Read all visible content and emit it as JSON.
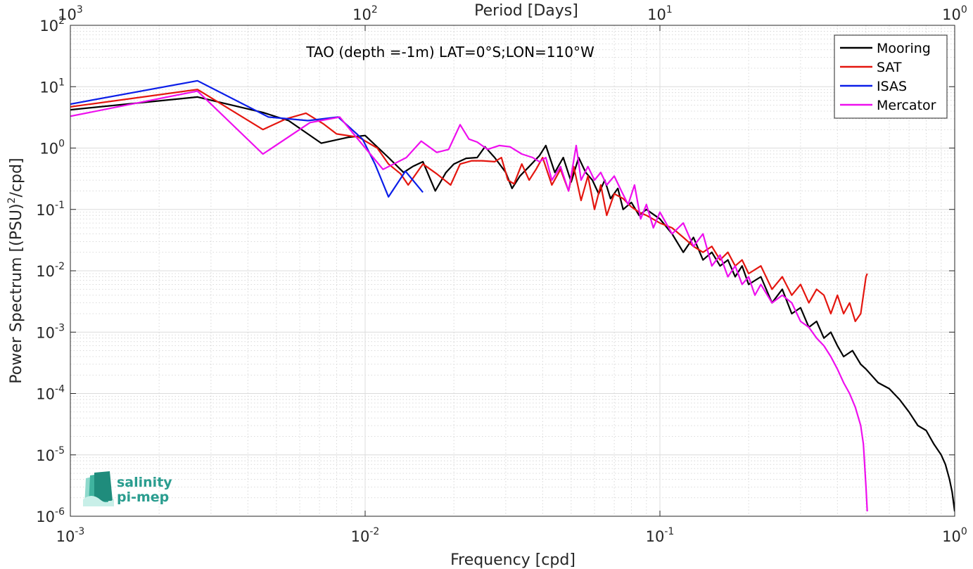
{
  "chart_data": {
    "type": "line",
    "title": "TAO (depth =-1m) LAT=0°S;LON=110°W",
    "xlabel": "Frequency [cpd]",
    "ylabel": "Power Spectrum [(PSU)²/cpd]",
    "ylabel_parts": {
      "a": "Power Spectrum [(PSU)",
      "sup": "2",
      "b": "/cpd]"
    },
    "top_xlabel": "Period [Days]",
    "xscale": "log",
    "yscale": "log",
    "xlim": [
      0.001,
      1
    ],
    "ylim": [
      1e-06,
      100
    ],
    "x_ticks": [
      {
        "value": 0.001,
        "base": "10",
        "exp": "-3"
      },
      {
        "value": 0.01,
        "base": "10",
        "exp": "-2"
      },
      {
        "value": 0.1,
        "base": "10",
        "exp": "-1"
      },
      {
        "value": 1,
        "base": "10",
        "exp": "0"
      }
    ],
    "top_ticks": [
      {
        "value": 0.001,
        "base": "10",
        "exp": "3"
      },
      {
        "value": 0.01,
        "base": "10",
        "exp": "2"
      },
      {
        "value": 0.1,
        "base": "10",
        "exp": "1"
      },
      {
        "value": 1,
        "base": "10",
        "exp": "0"
      }
    ],
    "y_ticks": [
      {
        "value": 100,
        "base": "10",
        "exp": "2"
      },
      {
        "value": 10,
        "base": "10",
        "exp": "1"
      },
      {
        "value": 1,
        "base": "10",
        "exp": "0"
      },
      {
        "value": 0.1,
        "base": "10",
        "exp": "-1"
      },
      {
        "value": 0.01,
        "base": "10",
        "exp": "-2"
      },
      {
        "value": 0.001,
        "base": "10",
        "exp": "-3"
      },
      {
        "value": 0.0001,
        "base": "10",
        "exp": "-4"
      },
      {
        "value": 1e-05,
        "base": "10",
        "exp": "-5"
      },
      {
        "value": 1e-06,
        "base": "10",
        "exp": "-6"
      }
    ],
    "grid": true,
    "minor_grid": true,
    "legend_position": "top-right",
    "series": [
      {
        "name": "Mooring",
        "color": "#000000",
        "points": [
          [
            0.001,
            4.2
          ],
          [
            0.0027,
            6.8
          ],
          [
            0.0045,
            3.8
          ],
          [
            0.0055,
            2.8
          ],
          [
            0.0071,
            1.2
          ],
          [
            0.0088,
            1.5
          ],
          [
            0.01,
            1.6
          ],
          [
            0.012,
            0.7
          ],
          [
            0.0135,
            0.4
          ],
          [
            0.0145,
            0.5
          ],
          [
            0.0157,
            0.6
          ],
          [
            0.0173,
            0.2
          ],
          [
            0.0188,
            0.4
          ],
          [
            0.02,
            0.55
          ],
          [
            0.022,
            0.68
          ],
          [
            0.024,
            0.7
          ],
          [
            0.0255,
            1.05
          ],
          [
            0.0275,
            0.7
          ],
          [
            0.03,
            0.4
          ],
          [
            0.0315,
            0.22
          ],
          [
            0.0335,
            0.35
          ],
          [
            0.036,
            0.5
          ],
          [
            0.039,
            0.75
          ],
          [
            0.041,
            1.1
          ],
          [
            0.044,
            0.4
          ],
          [
            0.047,
            0.7
          ],
          [
            0.05,
            0.28
          ],
          [
            0.053,
            0.7
          ],
          [
            0.056,
            0.4
          ],
          [
            0.059,
            0.3
          ],
          [
            0.062,
            0.18
          ],
          [
            0.065,
            0.3
          ],
          [
            0.068,
            0.15
          ],
          [
            0.072,
            0.22
          ],
          [
            0.075,
            0.1
          ],
          [
            0.08,
            0.13
          ],
          [
            0.085,
            0.08
          ],
          [
            0.09,
            0.1
          ],
          [
            0.1,
            0.07
          ],
          [
            0.11,
            0.04
          ],
          [
            0.12,
            0.02
          ],
          [
            0.13,
            0.035
          ],
          [
            0.14,
            0.015
          ],
          [
            0.15,
            0.02
          ],
          [
            0.16,
            0.012
          ],
          [
            0.17,
            0.015
          ],
          [
            0.18,
            0.008
          ],
          [
            0.19,
            0.012
          ],
          [
            0.2,
            0.006
          ],
          [
            0.22,
            0.008
          ],
          [
            0.24,
            0.003
          ],
          [
            0.26,
            0.005
          ],
          [
            0.28,
            0.002
          ],
          [
            0.3,
            0.0025
          ],
          [
            0.32,
            0.0012
          ],
          [
            0.34,
            0.0015
          ],
          [
            0.36,
            0.0008
          ],
          [
            0.38,
            0.001
          ],
          [
            0.4,
            0.0006
          ],
          [
            0.42,
            0.0004
          ],
          [
            0.45,
            0.0005
          ],
          [
            0.48,
            0.0003
          ],
          [
            0.5,
            0.00025
          ],
          [
            0.55,
            0.00015
          ],
          [
            0.6,
            0.00012
          ],
          [
            0.65,
            8e-05
          ],
          [
            0.7,
            5e-05
          ],
          [
            0.75,
            3e-05
          ],
          [
            0.8,
            2.5e-05
          ],
          [
            0.85,
            1.5e-05
          ],
          [
            0.9,
            1e-05
          ],
          [
            0.93,
            7e-06
          ],
          [
            0.96,
            4e-06
          ],
          [
            0.98,
            2.5e-06
          ],
          [
            1.0,
            1.2e-06
          ]
        ]
      },
      {
        "name": "SAT",
        "color": "#e4160f",
        "points": [
          [
            0.001,
            4.7
          ],
          [
            0.0027,
            9.0
          ],
          [
            0.0045,
            2.0
          ],
          [
            0.0054,
            3.0
          ],
          [
            0.0063,
            3.7
          ],
          [
            0.0072,
            2.5
          ],
          [
            0.008,
            1.7
          ],
          [
            0.0095,
            1.5
          ],
          [
            0.011,
            1.0
          ],
          [
            0.012,
            0.55
          ],
          [
            0.0132,
            0.38
          ],
          [
            0.014,
            0.25
          ],
          [
            0.0157,
            0.55
          ],
          [
            0.0175,
            0.38
          ],
          [
            0.0195,
            0.25
          ],
          [
            0.021,
            0.55
          ],
          [
            0.023,
            0.62
          ],
          [
            0.025,
            0.62
          ],
          [
            0.0275,
            0.6
          ],
          [
            0.029,
            0.7
          ],
          [
            0.0305,
            0.3
          ],
          [
            0.032,
            0.26
          ],
          [
            0.034,
            0.55
          ],
          [
            0.036,
            0.3
          ],
          [
            0.038,
            0.45
          ],
          [
            0.04,
            0.7
          ],
          [
            0.043,
            0.25
          ],
          [
            0.046,
            0.45
          ],
          [
            0.049,
            0.2
          ],
          [
            0.051,
            0.5
          ],
          [
            0.054,
            0.14
          ],
          [
            0.057,
            0.35
          ],
          [
            0.06,
            0.1
          ],
          [
            0.063,
            0.25
          ],
          [
            0.066,
            0.08
          ],
          [
            0.07,
            0.18
          ],
          [
            0.075,
            0.15
          ],
          [
            0.08,
            0.11
          ],
          [
            0.085,
            0.09
          ],
          [
            0.09,
            0.08
          ],
          [
            0.1,
            0.06
          ],
          [
            0.11,
            0.05
          ],
          [
            0.12,
            0.035
          ],
          [
            0.13,
            0.025
          ],
          [
            0.14,
            0.02
          ],
          [
            0.15,
            0.025
          ],
          [
            0.16,
            0.015
          ],
          [
            0.17,
            0.02
          ],
          [
            0.18,
            0.012
          ],
          [
            0.19,
            0.015
          ],
          [
            0.2,
            0.009
          ],
          [
            0.22,
            0.012
          ],
          [
            0.24,
            0.005
          ],
          [
            0.26,
            0.008
          ],
          [
            0.28,
            0.004
          ],
          [
            0.3,
            0.006
          ],
          [
            0.32,
            0.003
          ],
          [
            0.34,
            0.005
          ],
          [
            0.36,
            0.004
          ],
          [
            0.38,
            0.002
          ],
          [
            0.4,
            0.004
          ],
          [
            0.42,
            0.002
          ],
          [
            0.44,
            0.003
          ],
          [
            0.46,
            0.0015
          ],
          [
            0.48,
            0.002
          ],
          [
            0.5,
            0.008
          ],
          [
            0.505,
            0.009
          ]
        ]
      },
      {
        "name": "ISAS",
        "color": "#0b1ee8",
        "points": [
          [
            0.001,
            5.2
          ],
          [
            0.0027,
            12.5
          ],
          [
            0.0047,
            3.2
          ],
          [
            0.0064,
            2.8
          ],
          [
            0.0081,
            3.2
          ],
          [
            0.0098,
            1.4
          ],
          [
            0.0108,
            0.55
          ],
          [
            0.012,
            0.16
          ],
          [
            0.0137,
            0.42
          ],
          [
            0.0157,
            0.19
          ]
        ]
      },
      {
        "name": "Mercator",
        "color": "#ee0fee",
        "points": [
          [
            0.001,
            3.3
          ],
          [
            0.0027,
            8.5
          ],
          [
            0.0045,
            0.8
          ],
          [
            0.0065,
            2.6
          ],
          [
            0.0082,
            3.2
          ],
          [
            0.0097,
            1.2
          ],
          [
            0.0115,
            0.45
          ],
          [
            0.0125,
            0.55
          ],
          [
            0.0138,
            0.7
          ],
          [
            0.0155,
            1.3
          ],
          [
            0.0175,
            0.85
          ],
          [
            0.0192,
            0.95
          ],
          [
            0.021,
            2.4
          ],
          [
            0.0225,
            1.4
          ],
          [
            0.024,
            1.25
          ],
          [
            0.026,
            0.95
          ],
          [
            0.0285,
            1.1
          ],
          [
            0.031,
            1.05
          ],
          [
            0.034,
            0.8
          ],
          [
            0.037,
            0.7
          ],
          [
            0.039,
            0.6
          ],
          [
            0.041,
            0.7
          ],
          [
            0.043,
            0.3
          ],
          [
            0.046,
            0.5
          ],
          [
            0.049,
            0.2
          ],
          [
            0.052,
            1.1
          ],
          [
            0.054,
            0.3
          ],
          [
            0.057,
            0.5
          ],
          [
            0.06,
            0.3
          ],
          [
            0.063,
            0.4
          ],
          [
            0.066,
            0.25
          ],
          [
            0.07,
            0.35
          ],
          [
            0.074,
            0.2
          ],
          [
            0.078,
            0.12
          ],
          [
            0.082,
            0.25
          ],
          [
            0.086,
            0.07
          ],
          [
            0.09,
            0.12
          ],
          [
            0.095,
            0.05
          ],
          [
            0.1,
            0.09
          ],
          [
            0.11,
            0.04
          ],
          [
            0.12,
            0.06
          ],
          [
            0.13,
            0.025
          ],
          [
            0.14,
            0.04
          ],
          [
            0.15,
            0.012
          ],
          [
            0.16,
            0.018
          ],
          [
            0.17,
            0.008
          ],
          [
            0.18,
            0.012
          ],
          [
            0.19,
            0.006
          ],
          [
            0.2,
            0.008
          ],
          [
            0.21,
            0.004
          ],
          [
            0.22,
            0.006
          ],
          [
            0.24,
            0.003
          ],
          [
            0.26,
            0.004
          ],
          [
            0.28,
            0.003
          ],
          [
            0.3,
            0.0015
          ],
          [
            0.32,
            0.0012
          ],
          [
            0.34,
            0.0008
          ],
          [
            0.36,
            0.0006
          ],
          [
            0.38,
            0.0004
          ],
          [
            0.4,
            0.00025
          ],
          [
            0.42,
            0.00015
          ],
          [
            0.44,
            0.0001
          ],
          [
            0.46,
            6e-05
          ],
          [
            0.48,
            3e-05
          ],
          [
            0.49,
            1.5e-05
          ],
          [
            0.5,
            3e-06
          ],
          [
            0.505,
            1.2e-06
          ]
        ]
      }
    ]
  },
  "logo": {
    "line1": "salinity",
    "line2": "pi-mep",
    "color": "#2a9d8f"
  }
}
